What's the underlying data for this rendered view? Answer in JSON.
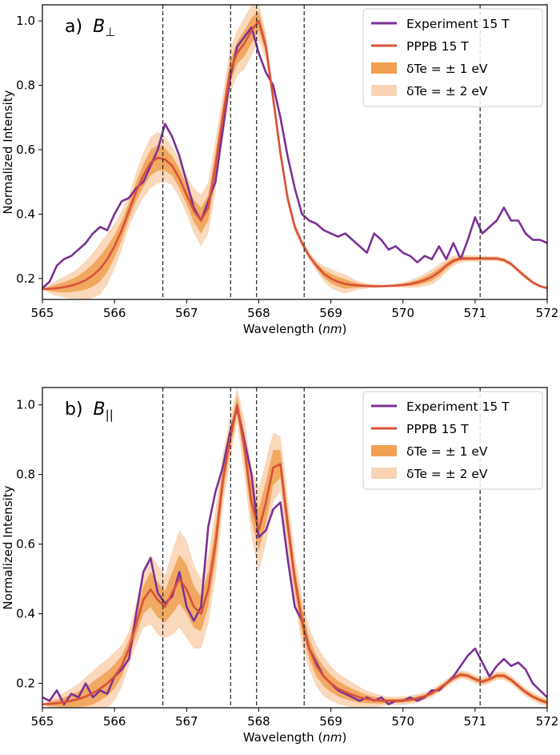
{
  "chart_data": [
    {
      "type": "line",
      "panel_label": "a)",
      "field_label": "B",
      "field_subscript": "⊥",
      "xlabel": "Wavelength",
      "xlabel_unit": "nm",
      "ylabel": "Normalized Intensity",
      "xlim": [
        565,
        572
      ],
      "ylim": [
        0.135,
        1.05
      ],
      "xticks": [
        565,
        566,
        567,
        568,
        569,
        570,
        571,
        572
      ],
      "yticks": [
        0.2,
        0.4,
        0.6,
        0.8,
        1.0
      ],
      "ytick_labels": [
        "0.2",
        "0.4",
        "0.6",
        "0.8",
        "1.0"
      ],
      "vlines": [
        566.67,
        567.61,
        567.97,
        568.63,
        571.07
      ],
      "legend_position": "top-right",
      "legend": [
        {
          "label": "Experiment 15 T",
          "kind": "line",
          "color": "#7b3294"
        },
        {
          "label": "PPPB 15 T",
          "kind": "line",
          "color": "#d8513a"
        },
        {
          "label": "δTe = ± 1 eV",
          "kind": "band",
          "color": "#f0a050"
        },
        {
          "label": "δTe = ± 2 eV",
          "kind": "band",
          "color": "#f8d4b4"
        }
      ],
      "series": [
        {
          "name": "Experiment 15 T",
          "color": "#7b3294",
          "x": [
            565.0,
            565.1,
            565.2,
            565.3,
            565.4,
            565.5,
            565.6,
            565.7,
            565.8,
            565.9,
            566.0,
            566.1,
            566.2,
            566.3,
            566.4,
            566.5,
            566.6,
            566.7,
            566.8,
            566.9,
            567.0,
            567.1,
            567.2,
            567.3,
            567.4,
            567.5,
            567.6,
            567.7,
            567.8,
            567.9,
            568.0,
            568.1,
            568.2,
            568.3,
            568.4,
            568.5,
            568.6,
            568.7,
            568.8,
            568.9,
            569.0,
            569.1,
            569.2,
            569.3,
            569.4,
            569.5,
            569.6,
            569.7,
            569.8,
            569.9,
            570.0,
            570.1,
            570.2,
            570.3,
            570.4,
            570.5,
            570.6,
            570.7,
            570.8,
            570.9,
            571.0,
            571.1,
            571.2,
            571.3,
            571.4,
            571.5,
            571.6,
            571.7,
            571.8,
            571.9,
            572.0
          ],
          "y": [
            0.17,
            0.19,
            0.24,
            0.26,
            0.27,
            0.29,
            0.31,
            0.34,
            0.36,
            0.35,
            0.4,
            0.44,
            0.45,
            0.48,
            0.5,
            0.55,
            0.6,
            0.68,
            0.64,
            0.58,
            0.5,
            0.42,
            0.38,
            0.44,
            0.5,
            0.66,
            0.82,
            0.92,
            0.95,
            0.98,
            0.9,
            0.84,
            0.8,
            0.7,
            0.58,
            0.48,
            0.4,
            0.38,
            0.37,
            0.35,
            0.34,
            0.33,
            0.34,
            0.32,
            0.3,
            0.28,
            0.34,
            0.32,
            0.29,
            0.3,
            0.28,
            0.27,
            0.25,
            0.27,
            0.26,
            0.3,
            0.26,
            0.31,
            0.26,
            0.32,
            0.39,
            0.34,
            0.36,
            0.38,
            0.42,
            0.38,
            0.38,
            0.34,
            0.32,
            0.32,
            0.31
          ]
        },
        {
          "name": "PPPB 15 T",
          "color": "#d8513a",
          "x": [
            565.0,
            565.1,
            565.2,
            565.3,
            565.4,
            565.5,
            565.6,
            565.7,
            565.8,
            565.9,
            566.0,
            566.1,
            566.2,
            566.3,
            566.4,
            566.5,
            566.6,
            566.7,
            566.8,
            566.9,
            567.0,
            567.1,
            567.2,
            567.3,
            567.4,
            567.5,
            567.6,
            567.7,
            567.8,
            567.9,
            568.0,
            568.1,
            568.2,
            568.3,
            568.4,
            568.5,
            568.6,
            568.7,
            568.8,
            568.9,
            569.0,
            569.1,
            569.2,
            569.3,
            569.4,
            569.5,
            569.6,
            569.7,
            569.8,
            569.9,
            570.0,
            570.1,
            570.2,
            570.3,
            570.4,
            570.5,
            570.6,
            570.7,
            570.8,
            570.9,
            571.0,
            571.1,
            571.2,
            571.3,
            571.4,
            571.5,
            571.6,
            571.7,
            571.8,
            571.9,
            572.0
          ],
          "y": [
            0.167,
            0.168,
            0.17,
            0.173,
            0.178,
            0.185,
            0.195,
            0.21,
            0.23,
            0.26,
            0.3,
            0.35,
            0.41,
            0.47,
            0.52,
            0.56,
            0.575,
            0.57,
            0.55,
            0.51,
            0.46,
            0.41,
            0.38,
            0.42,
            0.55,
            0.7,
            0.84,
            0.9,
            0.93,
            0.97,
            1.0,
            0.92,
            0.76,
            0.59,
            0.45,
            0.36,
            0.31,
            0.27,
            0.24,
            0.215,
            0.2,
            0.19,
            0.183,
            0.18,
            0.178,
            0.177,
            0.176,
            0.176,
            0.177,
            0.178,
            0.18,
            0.183,
            0.188,
            0.195,
            0.205,
            0.22,
            0.24,
            0.255,
            0.262,
            0.262,
            0.262,
            0.262,
            0.262,
            0.262,
            0.257,
            0.245,
            0.225,
            0.205,
            0.188,
            0.176,
            0.17
          ]
        }
      ]
    },
    {
      "type": "line",
      "panel_label": "b)",
      "field_label": "B",
      "field_subscript": "||",
      "xlabel": "Wavelength",
      "xlabel_unit": "nm",
      "ylabel": "Normalized Intensity",
      "xlim": [
        565,
        572
      ],
      "ylim": [
        0.13,
        1.05
      ],
      "xticks": [
        565,
        566,
        567,
        568,
        569,
        570,
        571,
        572
      ],
      "yticks": [
        0.2,
        0.4,
        0.6,
        0.8,
        1.0
      ],
      "ytick_labels": [
        "0.2",
        "0.4",
        "0.6",
        "0.8",
        "1.0"
      ],
      "vlines": [
        566.67,
        567.61,
        567.97,
        568.63,
        571.07
      ],
      "legend_position": "top-right",
      "legend": [
        {
          "label": "Experiment 15 T",
          "kind": "line",
          "color": "#7b3294"
        },
        {
          "label": "PPPB 15 T",
          "kind": "line",
          "color": "#d8513a"
        },
        {
          "label": "δTe = ± 1 eV",
          "kind": "band",
          "color": "#f0a050"
        },
        {
          "label": "δTe = ± 2 eV",
          "kind": "band",
          "color": "#f8d4b4"
        }
      ],
      "series": [
        {
          "name": "Experiment 15 T",
          "color": "#7b3294",
          "x": [
            565.0,
            565.1,
            565.2,
            565.3,
            565.4,
            565.5,
            565.6,
            565.7,
            565.8,
            565.9,
            566.0,
            566.1,
            566.2,
            566.3,
            566.4,
            566.5,
            566.6,
            566.7,
            566.8,
            566.9,
            567.0,
            567.1,
            567.2,
            567.3,
            567.4,
            567.5,
            567.6,
            567.7,
            567.8,
            567.9,
            568.0,
            568.1,
            568.2,
            568.3,
            568.4,
            568.5,
            568.6,
            568.7,
            568.8,
            568.9,
            569.0,
            569.1,
            569.2,
            569.3,
            569.4,
            569.5,
            569.6,
            569.7,
            569.8,
            569.9,
            570.0,
            570.1,
            570.2,
            570.3,
            570.4,
            570.5,
            570.6,
            570.7,
            570.8,
            570.9,
            571.0,
            571.1,
            571.2,
            571.3,
            571.4,
            571.5,
            571.6,
            571.7,
            571.8,
            571.9,
            572.0
          ],
          "y": [
            0.16,
            0.15,
            0.18,
            0.14,
            0.17,
            0.16,
            0.2,
            0.16,
            0.18,
            0.17,
            0.22,
            0.24,
            0.27,
            0.4,
            0.52,
            0.56,
            0.46,
            0.43,
            0.45,
            0.52,
            0.42,
            0.38,
            0.42,
            0.65,
            0.75,
            0.82,
            0.92,
            0.99,
            0.9,
            0.8,
            0.62,
            0.64,
            0.7,
            0.72,
            0.56,
            0.42,
            0.38,
            0.3,
            0.26,
            0.22,
            0.2,
            0.18,
            0.17,
            0.16,
            0.15,
            0.16,
            0.15,
            0.16,
            0.14,
            0.15,
            0.15,
            0.16,
            0.15,
            0.16,
            0.18,
            0.18,
            0.2,
            0.22,
            0.25,
            0.28,
            0.3,
            0.26,
            0.22,
            0.25,
            0.27,
            0.25,
            0.26,
            0.24,
            0.2,
            0.18,
            0.16
          ]
        },
        {
          "name": "PPPB 15 T",
          "color": "#d8513a",
          "x": [
            565.0,
            565.1,
            565.2,
            565.3,
            565.4,
            565.5,
            565.6,
            565.7,
            565.8,
            565.9,
            566.0,
            566.1,
            566.2,
            566.3,
            566.4,
            566.5,
            566.6,
            566.7,
            566.8,
            566.9,
            567.0,
            567.1,
            567.2,
            567.3,
            567.4,
            567.5,
            567.6,
            567.7,
            567.8,
            567.9,
            568.0,
            568.1,
            568.2,
            568.3,
            568.4,
            568.5,
            568.6,
            568.7,
            568.8,
            568.9,
            569.0,
            569.1,
            569.2,
            569.3,
            569.4,
            569.5,
            569.6,
            569.7,
            569.8,
            569.9,
            570.0,
            570.1,
            570.2,
            570.3,
            570.4,
            570.5,
            570.6,
            570.7,
            570.8,
            570.9,
            571.0,
            571.1,
            571.2,
            571.3,
            571.4,
            571.5,
            571.6,
            571.7,
            571.8,
            571.9,
            572.0
          ],
          "y": [
            0.14,
            0.141,
            0.143,
            0.146,
            0.15,
            0.155,
            0.162,
            0.172,
            0.185,
            0.2,
            0.22,
            0.25,
            0.3,
            0.37,
            0.44,
            0.47,
            0.44,
            0.42,
            0.46,
            0.5,
            0.47,
            0.42,
            0.4,
            0.47,
            0.6,
            0.78,
            0.9,
            1.0,
            0.88,
            0.72,
            0.64,
            0.72,
            0.82,
            0.83,
            0.66,
            0.5,
            0.38,
            0.3,
            0.25,
            0.22,
            0.2,
            0.185,
            0.175,
            0.167,
            0.16,
            0.155,
            0.152,
            0.15,
            0.15,
            0.15,
            0.151,
            0.153,
            0.157,
            0.163,
            0.172,
            0.185,
            0.2,
            0.215,
            0.225,
            0.222,
            0.212,
            0.205,
            0.212,
            0.222,
            0.222,
            0.21,
            0.192,
            0.175,
            0.162,
            0.152,
            0.145
          ]
        }
      ]
    }
  ]
}
